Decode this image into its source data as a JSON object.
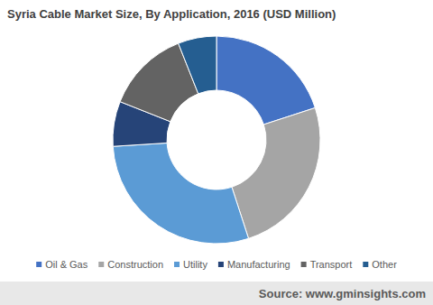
{
  "chart_data": {
    "type": "donut",
    "title": "Syria Cable Market Size, By Application, 2016 (USD Million)",
    "categories": [
      "Oil & Gas",
      "Construction",
      "Utility",
      "Manufacturing",
      "Transport",
      "Other"
    ],
    "values": [
      20,
      25,
      29,
      7,
      13,
      6
    ],
    "colors": [
      "#4472c4",
      "#a5a5a5",
      "#5b9bd5",
      "#264478",
      "#636363",
      "#255e91"
    ],
    "legend": "bottom",
    "source": "Source: www.gminsights.com"
  }
}
